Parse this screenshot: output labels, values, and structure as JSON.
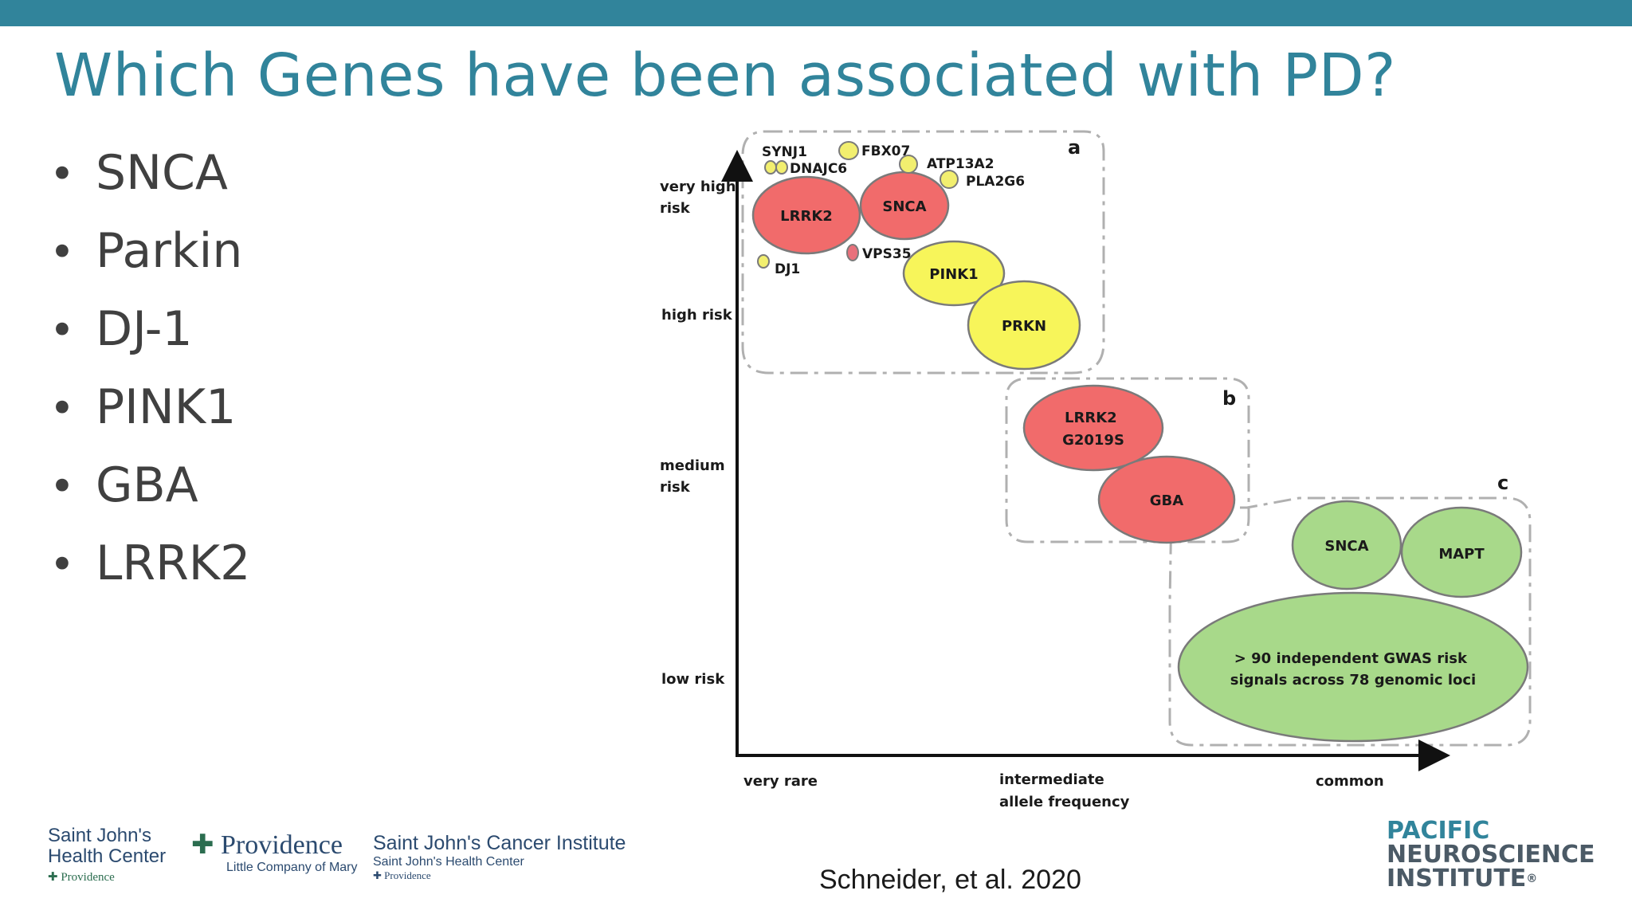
{
  "slide": {
    "title": "Which Genes have been associated with PD?",
    "bullets": [
      "SNCA",
      "Parkin",
      "DJ-1",
      "PINK1",
      "GBA",
      "LRRK2"
    ],
    "citation": "Schneider, et al. 2020"
  },
  "figure": {
    "y_axis_levels": [
      {
        "lines": [
          "very high",
          "risk"
        ]
      },
      {
        "lines": [
          "high risk"
        ]
      },
      {
        "lines": [
          "medium",
          "risk"
        ]
      },
      {
        "lines": [
          "low risk"
        ]
      }
    ],
    "x_axis_levels": [
      {
        "lines": [
          "very rare"
        ]
      },
      {
        "lines": [
          "intermediate",
          "allele frequency"
        ]
      },
      {
        "lines": [
          "common"
        ]
      }
    ],
    "panels": [
      {
        "label": "a"
      },
      {
        "label": "b"
      },
      {
        "label": "c"
      }
    ],
    "genes": [
      {
        "name": "SYNJ1",
        "color": "#f2ef6f"
      },
      {
        "name": "DNAJC6",
        "color": "#f2ef6f"
      },
      {
        "name": "FBX07",
        "color": "#f2ef6f"
      },
      {
        "name": "ATP13A2",
        "color": "#f2ef6f"
      },
      {
        "name": "PLA2G6",
        "color": "#f2ef6f"
      },
      {
        "name": "LRRK2",
        "color": "#f16b6b"
      },
      {
        "name": "SNCA",
        "color": "#f16b6b"
      },
      {
        "name": "VPS35",
        "color": "#e8707b"
      },
      {
        "name": "DJ1",
        "color": "#f2ef6f"
      },
      {
        "name": "PINK1",
        "color": "#f7f55a"
      },
      {
        "name": "PRKN",
        "color": "#f7f55a"
      },
      {
        "name": "LRRK2 G2019S",
        "lines": [
          "LRRK2",
          "G2019S"
        ],
        "color": "#f16b6b"
      },
      {
        "name": "GBA",
        "color": "#f16b6b"
      },
      {
        "name": "SNCA",
        "color": "#a8d98a"
      },
      {
        "name": "MAPT",
        "color": "#a8d98a"
      },
      {
        "name": "> 90 independent GWAS risk signals across 78 genomic loci",
        "lines": [
          "> 90 independent GWAS risk",
          "signals across 78 genomic loci"
        ],
        "color": "#a8d98a"
      }
    ]
  },
  "logos": {
    "sjhc": {
      "line1": "Saint John's",
      "line2": "Health Center",
      "line3": "Providence"
    },
    "providence": {
      "name": "Providence",
      "sub": "Little Company of Mary"
    },
    "sjci": {
      "main": "Saint John's Cancer Institute",
      "sub": "Saint John's Health Center",
      "small": "Providence"
    },
    "pni": {
      "line1": "PACIFIC",
      "line2": "NEUROSCIENCE",
      "line3": "INSTITUTE",
      "mark": "®"
    }
  },
  "colors": {
    "topbar": "#31849b",
    "title": "#31849b",
    "bullet_text": "#404040"
  }
}
